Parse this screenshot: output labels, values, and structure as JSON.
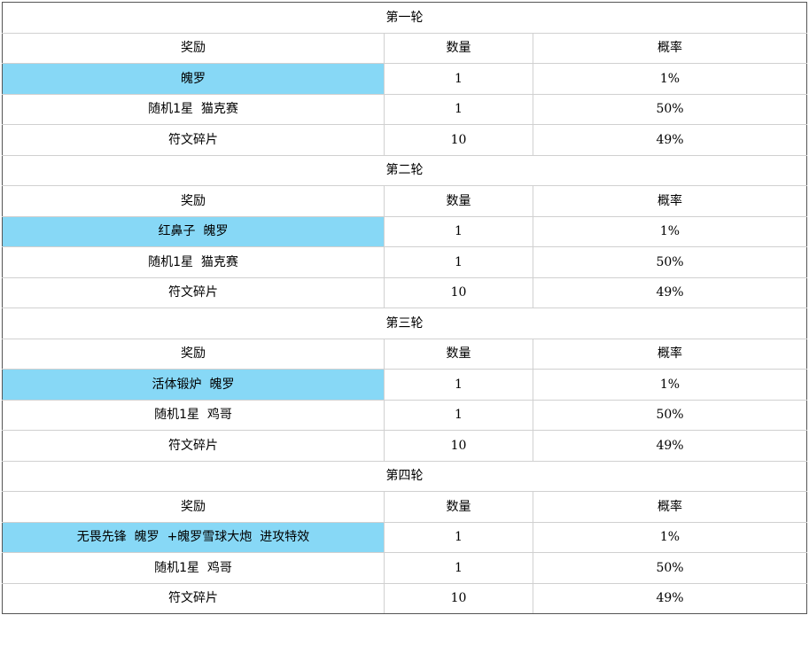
{
  "colors": {
    "highlight": "#87d8f6",
    "outer_border": "#555555",
    "grid_border": "#d0d0d0"
  },
  "headers": {
    "reward": "奖励",
    "quantity": "数量",
    "probability": "概率"
  },
  "rounds": [
    {
      "title": "第一轮",
      "rows": [
        {
          "reward": "魄罗",
          "quantity": "1",
          "probability": "1%",
          "highlight": true
        },
        {
          "reward": "随机1星  猫克赛",
          "quantity": "1",
          "probability": "50%",
          "highlight": false
        },
        {
          "reward": "符文碎片",
          "quantity": "10",
          "probability": "49%",
          "highlight": false
        }
      ]
    },
    {
      "title": "第二轮",
      "rows": [
        {
          "reward": "红鼻子  魄罗",
          "quantity": "1",
          "probability": "1%",
          "highlight": true
        },
        {
          "reward": "随机1星  猫克赛",
          "quantity": "1",
          "probability": "50%",
          "highlight": false
        },
        {
          "reward": "符文碎片",
          "quantity": "10",
          "probability": "49%",
          "highlight": false
        }
      ]
    },
    {
      "title": "第三轮",
      "rows": [
        {
          "reward": "活体锻炉  魄罗",
          "quantity": "1",
          "probability": "1%",
          "highlight": true
        },
        {
          "reward": "随机1星  鸡哥",
          "quantity": "1",
          "probability": "50%",
          "highlight": false
        },
        {
          "reward": "符文碎片",
          "quantity": "10",
          "probability": "49%",
          "highlight": false
        }
      ]
    },
    {
      "title": "第四轮",
      "rows": [
        {
          "reward": "无畏先锋  魄罗  +魄罗雪球大炮  进攻特效",
          "quantity": "1",
          "probability": "1%",
          "highlight": true
        },
        {
          "reward": "随机1星  鸡哥",
          "quantity": "1",
          "probability": "50%",
          "highlight": false
        },
        {
          "reward": "符文碎片",
          "quantity": "10",
          "probability": "49%",
          "highlight": false
        }
      ]
    }
  ]
}
